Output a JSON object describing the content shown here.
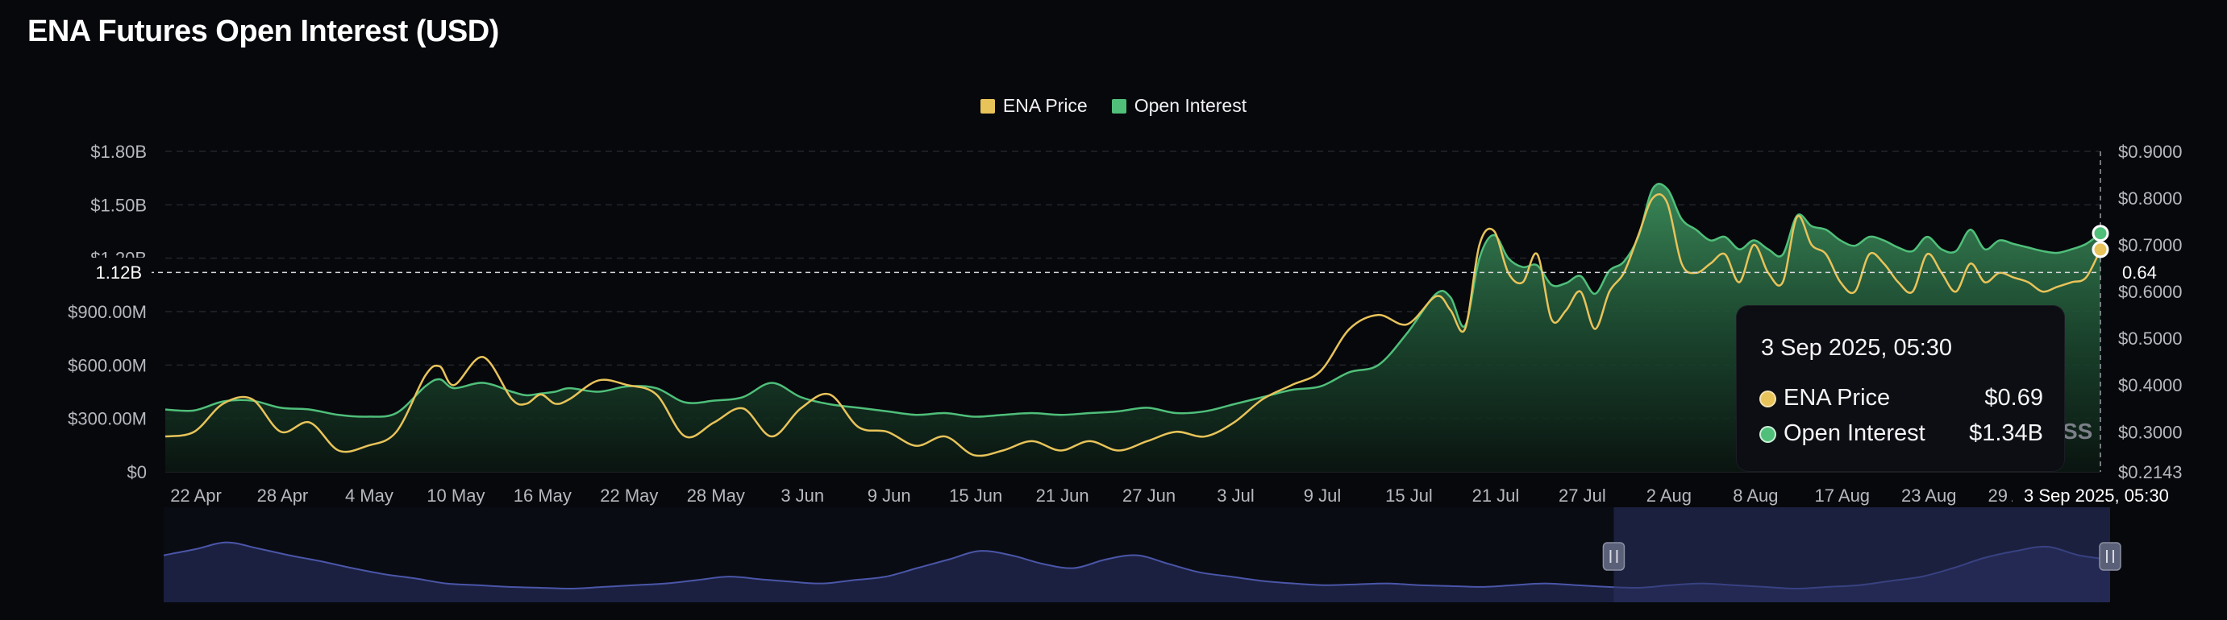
{
  "page": {
    "title": "ENA Futures Open Interest (USD)"
  },
  "legend": [
    {
      "label": "ENA Price",
      "color": "#e8c35a"
    },
    {
      "label": "Open Interest",
      "color": "#4fbf7a"
    }
  ],
  "crosshair": {
    "left_value": "1.12B",
    "right_value": "0.64",
    "date_label": "3 Sep 2025, 05:30"
  },
  "tooltip": {
    "date": "3 Sep 2025, 05:30",
    "rows": [
      {
        "label": "ENA Price",
        "value": "$0.69",
        "color": "#e8c35a"
      },
      {
        "label": "Open Interest",
        "value": "$1.34B",
        "color": "#4fbf7a"
      }
    ]
  },
  "watermark": "SS",
  "chart_data": {
    "type": "area",
    "title": "ENA Futures Open Interest (USD)",
    "x_tick_labels": [
      "22 Apr",
      "28 Apr",
      "4 May",
      "10 May",
      "16 May",
      "22 May",
      "28 May",
      "3 Jun",
      "9 Jun",
      "15 Jun",
      "21 Jun",
      "27 Jun",
      "3 Jul",
      "9 Jul",
      "15 Jul",
      "21 Jul",
      "27 Jul",
      "2 Aug",
      "8 Aug",
      "17 Aug",
      "23 Aug",
      "29 Aug"
    ],
    "y_left": {
      "tick_labels": [
        "$0",
        "$300.00M",
        "$600.00M",
        "$900.00M",
        "$1.20B",
        "$1.50B",
        "$1.80B"
      ],
      "ticks": [
        0,
        300,
        600,
        900,
        1200,
        1500,
        1800
      ],
      "range": [
        0,
        1800
      ],
      "unit": "M USD"
    },
    "y_right": {
      "tick_labels": [
        "$0.2143",
        "$0.3000",
        "$0.4000",
        "$0.5000",
        "$0.6000",
        "$0.7000",
        "$0.8000",
        "$0.9000"
      ],
      "ticks": [
        0.2143,
        0.3,
        0.4,
        0.5,
        0.6,
        0.7,
        0.8,
        0.9
      ],
      "range": [
        0.2143,
        0.9
      ]
    },
    "grid": true,
    "legend_position": "top-center",
    "x_days": [
      0,
      2,
      4,
      6,
      8,
      10,
      12,
      14,
      16,
      18,
      19,
      20,
      22,
      24,
      25,
      26,
      27,
      28,
      30,
      32,
      34,
      36,
      38,
      40,
      42,
      44,
      46,
      48,
      50,
      52,
      54,
      56,
      58,
      60,
      62,
      64,
      66,
      68,
      70,
      72,
      74,
      76,
      78,
      80,
      82,
      84,
      86,
      88,
      89,
      90,
      91,
      92,
      93,
      94,
      95,
      96,
      97,
      98,
      99,
      100,
      101,
      102,
      103,
      104,
      105,
      106,
      107,
      108,
      109,
      110,
      111,
      112,
      113,
      114,
      115,
      116,
      117,
      118,
      119,
      120,
      121,
      122,
      123,
      124,
      125,
      126,
      127,
      128,
      129,
      130,
      131,
      132,
      133,
      134
    ],
    "series": [
      {
        "name": "Open Interest",
        "axis": "left",
        "color": "#4fbf7a",
        "values": [
          350,
          345,
          395,
          400,
          360,
          350,
          320,
          310,
          330,
          480,
          520,
          470,
          500,
          450,
          430,
          440,
          450,
          470,
          450,
          480,
          470,
          390,
          400,
          420,
          500,
          420,
          380,
          360,
          340,
          320,
          330,
          310,
          320,
          330,
          320,
          330,
          340,
          360,
          330,
          340,
          380,
          420,
          460,
          480,
          560,
          600,
          780,
          1000,
          980,
          820,
          1200,
          1330,
          1200,
          1150,
          1160,
          1050,
          1060,
          1100,
          1000,
          1130,
          1180,
          1320,
          1590,
          1590,
          1420,
          1360,
          1300,
          1320,
          1250,
          1300,
          1250,
          1220,
          1440,
          1380,
          1360,
          1300,
          1270,
          1320,
          1300,
          1260,
          1240,
          1320,
          1250,
          1240,
          1360,
          1250,
          1300,
          1280,
          1260,
          1240,
          1230,
          1250,
          1280,
          1340
        ]
      },
      {
        "name": "ENA Price",
        "axis": "right",
        "color": "#e8c35a",
        "values": [
          0.29,
          0.3,
          0.36,
          0.37,
          0.3,
          0.32,
          0.26,
          0.27,
          0.3,
          0.42,
          0.44,
          0.4,
          0.46,
          0.37,
          0.36,
          0.38,
          0.36,
          0.37,
          0.41,
          0.4,
          0.38,
          0.29,
          0.32,
          0.35,
          0.29,
          0.35,
          0.38,
          0.31,
          0.3,
          0.27,
          0.29,
          0.25,
          0.26,
          0.28,
          0.26,
          0.28,
          0.26,
          0.28,
          0.3,
          0.29,
          0.32,
          0.37,
          0.4,
          0.43,
          0.52,
          0.55,
          0.53,
          0.59,
          0.56,
          0.52,
          0.7,
          0.73,
          0.64,
          0.62,
          0.68,
          0.54,
          0.56,
          0.6,
          0.52,
          0.6,
          0.64,
          0.72,
          0.8,
          0.79,
          0.66,
          0.64,
          0.66,
          0.68,
          0.62,
          0.7,
          0.64,
          0.62,
          0.76,
          0.7,
          0.68,
          0.62,
          0.6,
          0.68,
          0.66,
          0.62,
          0.6,
          0.68,
          0.64,
          0.6,
          0.66,
          0.62,
          0.64,
          0.63,
          0.62,
          0.6,
          0.61,
          0.62,
          0.63,
          0.69
        ]
      }
    ],
    "navigator": {
      "values": [
        0.55,
        0.62,
        0.7,
        0.63,
        0.55,
        0.48,
        0.4,
        0.33,
        0.28,
        0.22,
        0.2,
        0.18,
        0.17,
        0.16,
        0.18,
        0.2,
        0.22,
        0.26,
        0.3,
        0.27,
        0.24,
        0.22,
        0.26,
        0.3,
        0.4,
        0.5,
        0.6,
        0.55,
        0.45,
        0.4,
        0.5,
        0.55,
        0.45,
        0.35,
        0.3,
        0.25,
        0.22,
        0.2,
        0.21,
        0.22,
        0.2,
        0.19,
        0.18,
        0.2,
        0.22,
        0.2,
        0.18,
        0.17,
        0.2,
        0.22,
        0.2,
        0.18,
        0.16,
        0.18,
        0.2,
        0.25,
        0.3,
        0.4,
        0.52,
        0.6,
        0.65,
        0.55,
        0.5
      ],
      "selected_range": [
        0.745,
        1.0
      ]
    }
  }
}
